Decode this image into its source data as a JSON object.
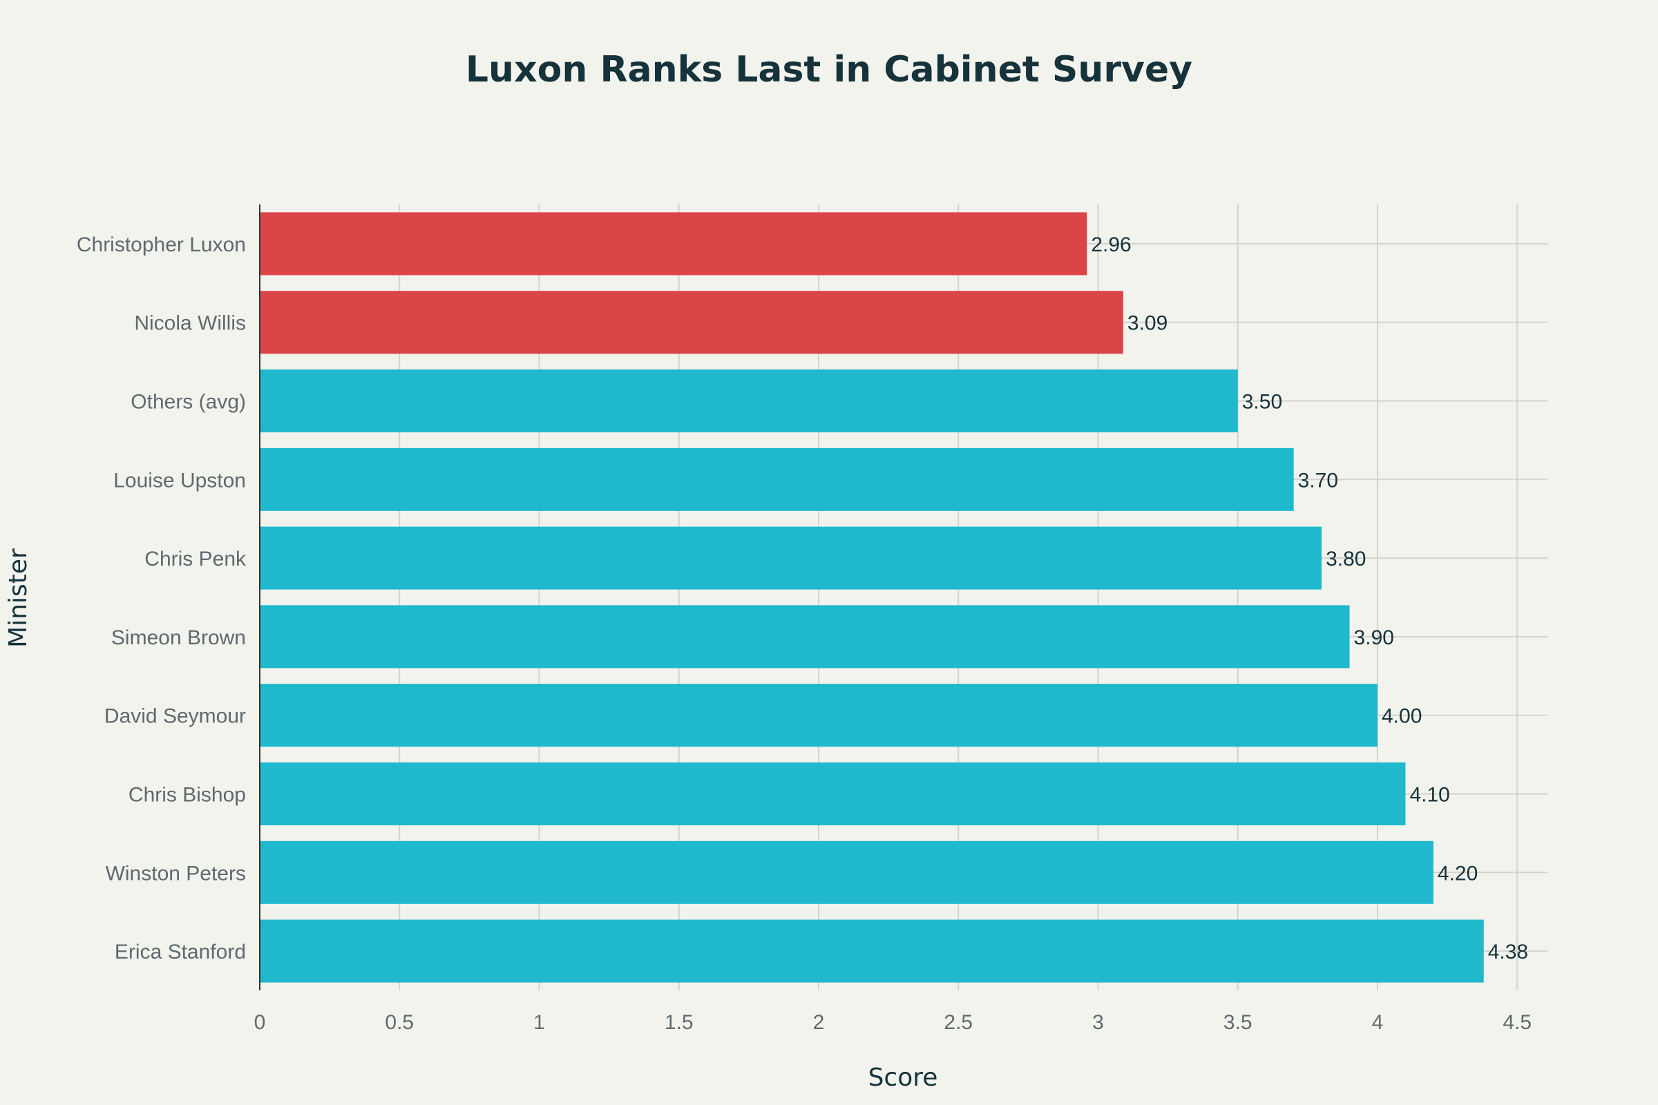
{
  "chart_data": {
    "type": "bar",
    "orientation": "horizontal",
    "title": "Luxon Ranks Last in Cabinet Survey",
    "xlabel": "Score",
    "ylabel": "Minister",
    "xlim": [
      0,
      4.6
    ],
    "xticks": [
      0,
      0.5,
      1,
      1.5,
      2,
      2.5,
      3,
      3.5,
      4,
      4.5
    ],
    "tick_labels": [
      "0",
      "0.5",
      "1",
      "1.5",
      "2",
      "2.5",
      "3",
      "3.5",
      "4",
      "4.5"
    ],
    "grid": true,
    "categories": [
      "Christopher Luxon",
      "Nicola Willis",
      "Others (avg)",
      "Louise Upston",
      "Chris Penk",
      "Simeon Brown",
      "David Seymour",
      "Chris Bishop",
      "Winston Peters",
      "Erica Stanford"
    ],
    "values": [
      2.96,
      3.09,
      3.5,
      3.7,
      3.8,
      3.9,
      4.0,
      4.1,
      4.2,
      4.38
    ],
    "value_labels": [
      "2.96",
      "3.09",
      "3.50",
      "3.70",
      "3.80",
      "3.90",
      "4.00",
      "4.10",
      "4.20",
      "4.38"
    ],
    "bar_colors": [
      "#dc4548",
      "#dc4548",
      "#20b8cc",
      "#20b8cc",
      "#20b8cc",
      "#20b8cc",
      "#20b8cc",
      "#20b8cc",
      "#20b8cc",
      "#20b8cc"
    ]
  }
}
